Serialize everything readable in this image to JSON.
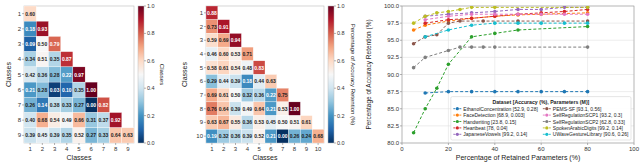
{
  "chart_data": [
    {
      "type": "heatmap",
      "xlabel": "Classes",
      "ylabel": "Classes",
      "xticks": [
        1,
        2,
        3,
        4,
        5,
        6,
        7,
        8,
        9
      ],
      "yticks": [
        1,
        2,
        3,
        4,
        5,
        6,
        7,
        8,
        9
      ],
      "values": [
        [
          0.6,
          null,
          null,
          null,
          null,
          null,
          null,
          null,
          null
        ],
        [
          0.18,
          0.93,
          null,
          null,
          null,
          null,
          null,
          null,
          null
        ],
        [
          0.09,
          0.5,
          0.79,
          null,
          null,
          null,
          null,
          null,
          null
        ],
        [
          0.34,
          0.51,
          0.35,
          0.87,
          null,
          null,
          null,
          null,
          null
        ],
        [
          0.42,
          0.36,
          0.28,
          0.22,
          0.97,
          null,
          null,
          null,
          null
        ],
        [
          0.21,
          0.28,
          0.03,
          0.1,
          0.35,
          1.0,
          null,
          null,
          null
        ],
        [
          0.26,
          0.14,
          0.38,
          0.33,
          0.27,
          0.0,
          0.82,
          null,
          null
        ],
        [
          0.4,
          0.68,
          0.54,
          0.49,
          0.66,
          0.31,
          0.37,
          0.92,
          null
        ],
        [
          0.39,
          0.45,
          0.39,
          0.35,
          0.52,
          0.27,
          0.33,
          0.64,
          0.63
        ]
      ],
      "value_labels": [
        [
          "0.60",
          null,
          null,
          null,
          null,
          null,
          null,
          null,
          null
        ],
        [
          "0.18",
          "0.93",
          null,
          null,
          null,
          null,
          null,
          null,
          null
        ],
        [
          "0.09",
          "0.50",
          "0.79",
          null,
          null,
          null,
          null,
          null,
          null
        ],
        [
          "0.34",
          "0.51",
          "0.35",
          "0.87",
          null,
          null,
          null,
          null,
          null
        ],
        [
          "0.42",
          "0.36",
          "0.28",
          "0.22",
          "0.97",
          null,
          null,
          null,
          null
        ],
        [
          "0.21",
          "0.28",
          "0.03",
          "0.10",
          "0.35",
          "1.00",
          null,
          null,
          null
        ],
        [
          "0.26",
          "0.14",
          "0.38",
          "0.33",
          "0.27",
          "0.00",
          "0.82",
          null,
          null
        ],
        [
          "0.40",
          "0.68",
          "0.54",
          "0.49",
          "0.66",
          "0.31",
          "0.37",
          "0.92",
          null
        ],
        [
          "0.39",
          "0.45",
          "0.39",
          "0.35",
          "0.52",
          "0.27",
          "0.33",
          "0.64",
          "0.63"
        ]
      ],
      "data_labels": true,
      "color_range": [
        0.0,
        1.0
      ],
      "color_ticks": [
        {
          "value": 0.0,
          "label": "0.0"
        },
        0.2,
        0.4,
        0.6,
        0.8,
        {
          "value": 1.0,
          "label": "1.0"
        }
      ],
      "colorbar_label": "Classes"
    },
    {
      "type": "heatmap",
      "xlabel": "Classes",
      "ylabel": "Classes",
      "xticks": [
        1,
        2,
        3,
        4,
        5,
        6,
        7,
        8,
        9,
        10
      ],
      "yticks": [
        1,
        2,
        3,
        4,
        5,
        6,
        7,
        8,
        9,
        10
      ],
      "values": [
        [
          0.88,
          null,
          null,
          null,
          null,
          null,
          null,
          null,
          null,
          null
        ],
        [
          0.73,
          0.91,
          null,
          null,
          null,
          null,
          null,
          null,
          null,
          null
        ],
        [
          0.59,
          0.69,
          0.94,
          null,
          null,
          null,
          null,
          null,
          null,
          null
        ],
        [
          0.46,
          0.6,
          0.53,
          0.71,
          null,
          null,
          null,
          null,
          null,
          null
        ],
        [
          0.58,
          0.61,
          0.54,
          0.48,
          0.83,
          null,
          null,
          null,
          null,
          null
        ],
        [
          0.29,
          0.44,
          0.39,
          0.18,
          0.44,
          0.63,
          null,
          null,
          null,
          null
        ],
        [
          0.69,
          0.61,
          0.5,
          0.32,
          0.36,
          0.22,
          0.75,
          null,
          null,
          null
        ],
        [
          0.76,
          0.64,
          0.39,
          0.49,
          0.64,
          0.21,
          0.53,
          1.0,
          null,
          null
        ],
        [
          0.63,
          0.67,
          0.55,
          0.36,
          0.53,
          0.45,
          0.5,
          0.51,
          0.61,
          null
        ],
        [
          0.19,
          0.32,
          0.36,
          0.39,
          0.52,
          0.21,
          0.0,
          0.26,
          0.24,
          0.68
        ]
      ],
      "value_labels": [
        [
          "0.88",
          null,
          null,
          null,
          null,
          null,
          null,
          null,
          null,
          null
        ],
        [
          "0.73",
          "0.91",
          null,
          null,
          null,
          null,
          null,
          null,
          null,
          null
        ],
        [
          "0.59",
          "0.69",
          "0.94",
          null,
          null,
          null,
          null,
          null,
          null,
          null
        ],
        [
          "0.46",
          "0.60",
          "0.53",
          "0.71",
          null,
          null,
          null,
          null,
          null,
          null
        ],
        [
          "0.58",
          "0.61",
          "0.54",
          "0.48",
          "0.83",
          null,
          null,
          null,
          null,
          null
        ],
        [
          "0.29",
          "0.44",
          "0.39",
          "0.18",
          "0.44",
          "0.63",
          null,
          null,
          null,
          null
        ],
        [
          "0.69",
          "0.61",
          "0.50",
          "0.32",
          "0.36",
          "0.22",
          "0.75",
          null,
          null,
          null
        ],
        [
          "0.76",
          "0.64",
          "0.39",
          "0.49",
          "0.64",
          "0.21",
          "0.53",
          "1.00",
          null,
          null
        ],
        [
          "0.63",
          "0.67",
          "0.55",
          "0.36",
          "0.53",
          "0.45",
          "0.50",
          "0.51",
          "0.61",
          null
        ],
        [
          "0.19",
          "0.32",
          "0.36",
          "0.39",
          "0.52",
          "0.21",
          "0.00",
          "0.26",
          "0.24",
          "0.68"
        ]
      ],
      "data_labels": true,
      "color_range": [
        0.0,
        1.0
      ],
      "color_ticks": [
        {
          "value": 0.0,
          "label": "0.0"
        },
        0.2,
        0.4,
        0.6,
        0.8,
        {
          "value": 1.0,
          "label": "1.0"
        }
      ],
      "colorbar_label": "Percentage of Accuracy Retention (%)"
    },
    {
      "type": "line",
      "marker": "o",
      "line_style": "dashed",
      "xlabel": "Percentage of Retained Parameters (%)",
      "ylabel": "Percentage of Accuracy Retention (%)",
      "xlim": [
        0,
        100
      ],
      "ylim": [
        80.0,
        100.0
      ],
      "xticks": [
        0,
        20,
        40,
        60,
        80,
        100
      ],
      "yticks": [
        {
          "value": 80.0,
          "label": "80.0"
        },
        82.5,
        {
          "value": 85.0,
          "label": "85.0"
        },
        87.5,
        {
          "value": 90.0,
          "label": "90.0"
        },
        92.5,
        {
          "value": 95.0,
          "label": "95.0"
        },
        97.5,
        {
          "value": 100.0,
          "label": "100.0"
        }
      ],
      "grid": true,
      "legend": "lower right",
      "legend_title": "Dataset [Accuracy (%), Parameters (M)]",
      "series": [
        {
          "name": "EthanolConcentration [52.9, 0.28]",
          "color": "#1f77b4",
          "x": [
            10,
            20,
            30,
            40,
            50,
            60,
            70,
            80
          ],
          "values": [
            87.3,
            87.5,
            87.5,
            87.5,
            87.5,
            87.5,
            87.5,
            87.5
          ]
        },
        {
          "name": "FaceDetection [68.9, 0.003]",
          "color": "#ff7f0e",
          "x": [
            5,
            10,
            20,
            30,
            40,
            50,
            60,
            80
          ],
          "values": [
            96.5,
            97.2,
            97.8,
            98.2,
            98.5,
            98.7,
            98.8,
            99.0
          ]
        },
        {
          "name": "Handwriting [23.8, 0.15]",
          "color": "#2ca02c",
          "x": [
            5,
            10,
            15,
            20,
            30,
            40,
            50,
            80
          ],
          "values": [
            81.5,
            85.0,
            88.0,
            91.5,
            95.5,
            96.0,
            96.5,
            97.0
          ]
        },
        {
          "name": "Heartbeat [78, 0.04]",
          "color": "#d62728",
          "x": [
            10,
            20,
            30,
            40,
            50,
            60,
            70,
            80
          ],
          "values": [
            97.5,
            98.0,
            98.2,
            98.5,
            98.8,
            99.0,
            99.2,
            99.5
          ]
        },
        {
          "name": "JapaneseVowels [99.2, 0.14]",
          "color": "#9467bd",
          "x": [
            10,
            20,
            30,
            40,
            50,
            60,
            70,
            80
          ],
          "values": [
            98.5,
            98.8,
            99.0,
            99.2,
            99.5,
            99.5,
            99.8,
            99.8
          ]
        },
        {
          "name": "PEMS-SF [93.1, 0.56]",
          "color": "#8c564b",
          "x": [
            5,
            10,
            15,
            20,
            25,
            35,
            50,
            80
          ],
          "values": [
            94.5,
            95.5,
            95.8,
            97.5,
            97.8,
            97.8,
            97.8,
            97.8
          ]
        },
        {
          "name": "SelfRegulationSCP1 [93.2, 0.3]",
          "color": "#e377c2",
          "x": [
            10,
            20,
            30,
            40,
            50,
            60,
            70,
            80
          ],
          "values": [
            98.0,
            98.5,
            98.8,
            98.8,
            98.8,
            98.8,
            98.8,
            98.8
          ]
        },
        {
          "name": "SelfRegulationSCP2 [62.8, 0.33]",
          "color": "#7f7f7f",
          "x": [
            5,
            10,
            20,
            25,
            30,
            35,
            40,
            80
          ],
          "values": [
            91.0,
            92.5,
            93.5,
            94.0,
            94.0,
            94.0,
            94.0,
            94.0
          ]
        },
        {
          "name": "SpokenArabicDigits [99.2, 0.14]",
          "color": "#bcbd22",
          "x": [
            5,
            10,
            15,
            20,
            25,
            30,
            40,
            80
          ],
          "values": [
            97.5,
            98.5,
            99.0,
            99.2,
            99.5,
            99.8,
            99.8,
            99.8
          ]
        },
        {
          "name": "UWaveGestureLibrary [90.6, 0.26]",
          "color": "#17becf",
          "x": [
            10,
            20,
            30,
            40,
            50,
            60,
            70,
            80
          ],
          "values": [
            95.5,
            96.5,
            97.2,
            97.5,
            97.5,
            97.5,
            97.5,
            97.5
          ]
        }
      ]
    }
  ]
}
